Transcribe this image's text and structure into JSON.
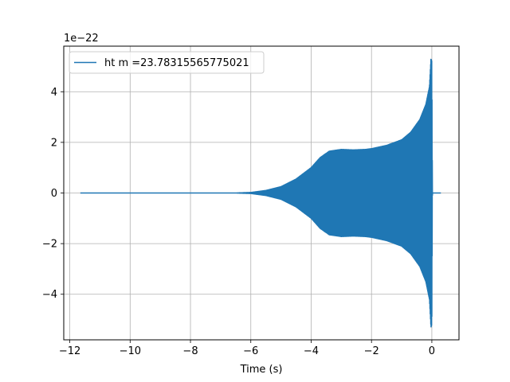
{
  "chart_data": {
    "type": "line",
    "title": "",
    "xlabel": "Time (s)",
    "ylabel": "",
    "y_offset_label": "1e−22",
    "xlim": [
      -12.2,
      0.9
    ],
    "ylim": [
      -5.8,
      5.8
    ],
    "x_ticks": [
      -12,
      -10,
      -8,
      -6,
      -4,
      -2,
      0
    ],
    "x_tick_labels": [
      "−12",
      "−10",
      "−8",
      "−6",
      "−4",
      "−2",
      "0"
    ],
    "y_ticks": [
      -4,
      -2,
      0,
      2,
      4
    ],
    "y_tick_labels": [
      "−4",
      "−2",
      "0",
      "2",
      "4"
    ],
    "grid": true,
    "legend_position": "top-left",
    "series": [
      {
        "name": "ht m =23.78315565775021",
        "color": "#1f77b4",
        "x_range": [
          -11.65,
          0.3
        ],
        "envelope": [
          [
            -11.65,
            0.0
          ],
          [
            -6.5,
            0.0
          ],
          [
            -6.0,
            0.02
          ],
          [
            -5.5,
            0.1
          ],
          [
            -5.0,
            0.25
          ],
          [
            -4.5,
            0.55
          ],
          [
            -4.0,
            1.0
          ],
          [
            -3.7,
            1.4
          ],
          [
            -3.4,
            1.65
          ],
          [
            -3.0,
            1.72
          ],
          [
            -2.6,
            1.7
          ],
          [
            -2.2,
            1.72
          ],
          [
            -2.0,
            1.75
          ],
          [
            -1.5,
            1.88
          ],
          [
            -1.0,
            2.1
          ],
          [
            -0.7,
            2.4
          ],
          [
            -0.4,
            2.9
          ],
          [
            -0.2,
            3.5
          ],
          [
            -0.08,
            4.2
          ],
          [
            -0.03,
            5.3
          ],
          [
            0.0,
            5.2
          ],
          [
            0.02,
            0.0
          ],
          [
            0.3,
            0.0
          ]
        ]
      }
    ]
  }
}
